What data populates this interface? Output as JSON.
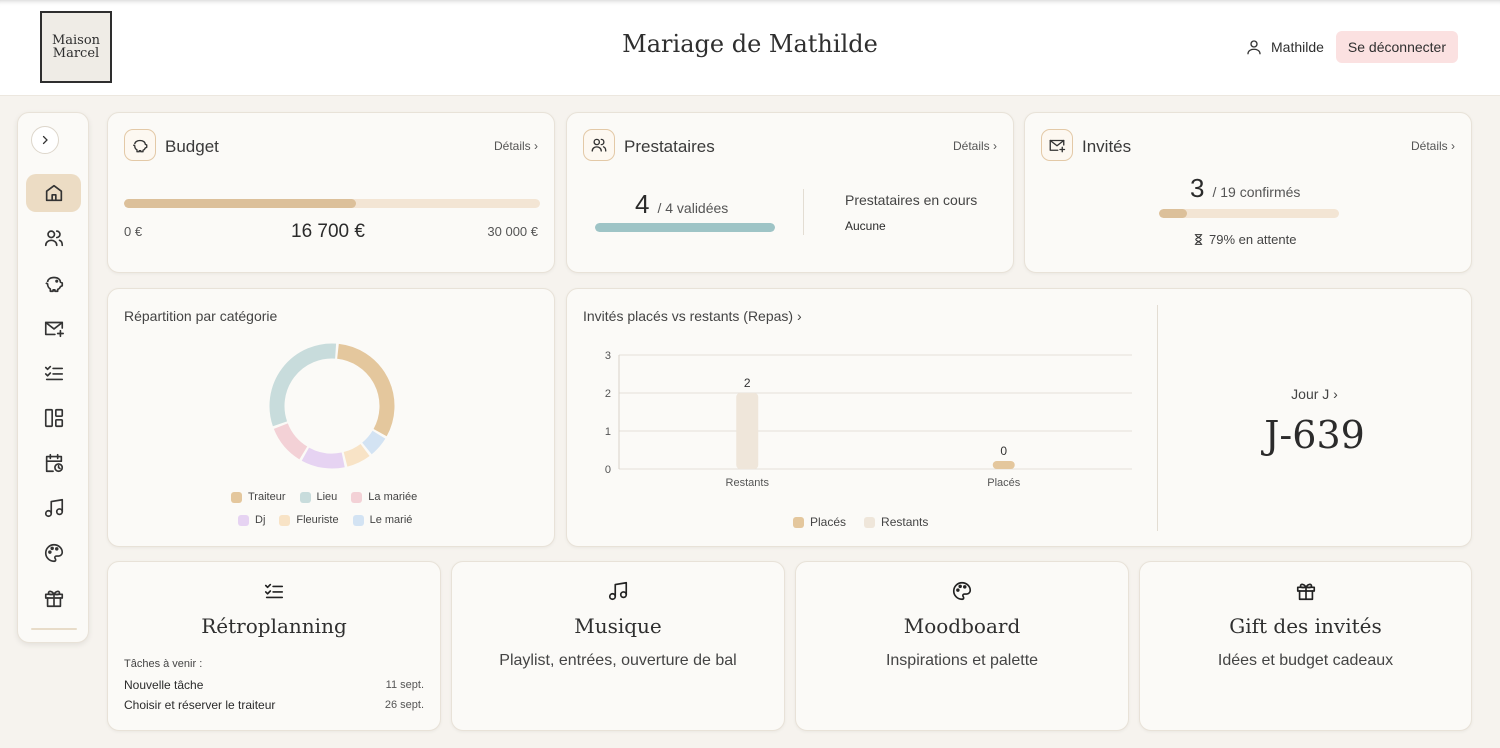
{
  "header": {
    "logo_line1": "Maison",
    "logo_line2": "Marcel",
    "title": "Mariage de Mathilde",
    "user_name": "Mathilde",
    "logout_label": "Se déconnecter"
  },
  "sidebar": {
    "items": [
      {
        "icon": "home-icon",
        "active": true
      },
      {
        "icon": "users-icon"
      },
      {
        "icon": "piggy-bank-icon"
      },
      {
        "icon": "mail-plus-icon"
      },
      {
        "icon": "checklist-icon"
      },
      {
        "icon": "layout-icon"
      },
      {
        "icon": "calendar-clock-icon"
      },
      {
        "icon": "music-icon"
      },
      {
        "icon": "palette-icon"
      },
      {
        "icon": "gift-icon"
      }
    ]
  },
  "budget": {
    "title": "Budget",
    "details": "Détails ›",
    "min": "0 €",
    "current": "16 700 €",
    "max": "30 000 €",
    "progress_fraction": 0.557
  },
  "prestataires": {
    "title": "Prestataires",
    "details": "Détails ›",
    "count": "4",
    "validated_text": "/ 4 validées",
    "progress_fraction": 1.0,
    "in_progress_label": "Prestataires en cours",
    "in_progress_value": "Aucune"
  },
  "invites": {
    "title": "Invités",
    "details": "Détails ›",
    "count": "3",
    "confirmed_text": "/ 19 confirmés",
    "progress_fraction": 0.158,
    "pending_text": "79% en attente"
  },
  "category_chart": {
    "title": "Répartition par catégorie",
    "legend": [
      {
        "name": "Traiteur",
        "color": "#e4c79d"
      },
      {
        "name": "Lieu",
        "color": "#c8dcdc"
      },
      {
        "name": "La mariée",
        "color": "#f3d1d6"
      },
      {
        "name": "Dj",
        "color": "#e6d3f2"
      },
      {
        "name": "Fleuriste",
        "color": "#f8e3c6"
      },
      {
        "name": "Le marié",
        "color": "#d3e3f3"
      }
    ]
  },
  "seating_chart": {
    "title": "Invités placés vs restants (Repas) ›",
    "legend": [
      {
        "name": "Placés",
        "color": "#e4c79d"
      },
      {
        "name": "Restants",
        "color": "#efe6da"
      }
    ]
  },
  "chart_data": [
    {
      "type": "pie",
      "title": "Répartition par catégorie",
      "donut": true,
      "legend_position": "bottom",
      "labels": [
        "Traiteur",
        "Le marié",
        "Fleuriste",
        "Dj",
        "La mariée",
        "Lieu"
      ],
      "values": [
        32,
        6,
        7,
        12,
        11,
        32
      ],
      "colors": [
        "#e4c79d",
        "#d3e3f3",
        "#f8e3c6",
        "#e6d3f2",
        "#f3d1d6",
        "#c8dcdc"
      ]
    },
    {
      "type": "bar",
      "title": "Invités placés vs restants (Repas) ›",
      "categories": [
        "Restants",
        "Placés"
      ],
      "values": [
        2,
        0
      ],
      "ylim": [
        0,
        3
      ],
      "yticks": [
        "0",
        "1",
        "2",
        "3"
      ],
      "grid": true,
      "legend_position": "bottom",
      "bar_colors": [
        "#efe6da",
        "#e4c79d"
      ]
    }
  ],
  "countdown": {
    "label": "Jour J ›",
    "value": "J-639"
  },
  "tiles": [
    {
      "icon": "checklist-icon",
      "title": "Rétroplanning",
      "subtitle": ""
    },
    {
      "icon": "music-icon",
      "title": "Musique",
      "subtitle": "Playlist, entrées, ouverture de bal"
    },
    {
      "icon": "palette-icon",
      "title": "Moodboard",
      "subtitle": "Inspirations et palette"
    },
    {
      "icon": "gift-icon",
      "title": "Gift des invités",
      "subtitle": "Idées et budget cadeaux"
    }
  ],
  "tasks": {
    "heading": "Tâches à venir :",
    "items": [
      {
        "name": "Nouvelle tâche",
        "date": "11 sept."
      },
      {
        "name": "Choisir et réserver le traiteur",
        "date": "26 sept."
      }
    ]
  }
}
